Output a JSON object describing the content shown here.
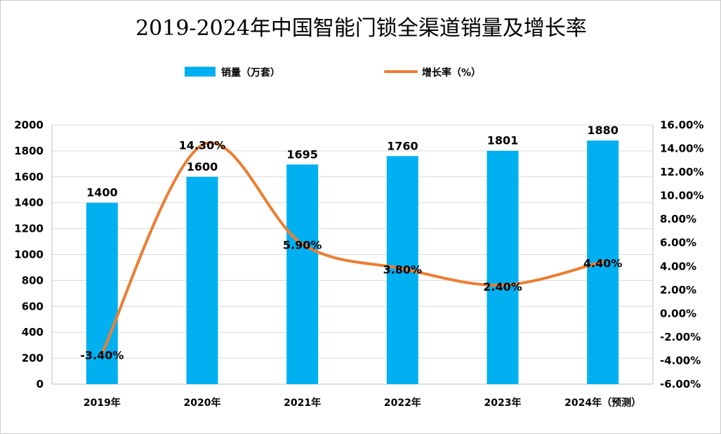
{
  "chart_data": {
    "type": "bar",
    "title": "2019-2024年中国智能门锁全渠道销量及增长率",
    "categories": [
      "2019年",
      "2020年",
      "2021年",
      "2022年",
      "2023年",
      "2024年（预测）"
    ],
    "series": [
      {
        "name": "销量（万套）",
        "type": "bar",
        "axis": "left",
        "values": [
          1400,
          1600,
          1695,
          1760,
          1801,
          1880
        ],
        "labels": [
          "1400",
          "1600",
          "1695",
          "1760",
          "1801",
          "1880"
        ],
        "color": "#00B0F0"
      },
      {
        "name": "增长率（%）",
        "type": "line",
        "axis": "right",
        "smooth": true,
        "values": [
          -3.4,
          14.3,
          5.9,
          3.8,
          2.4,
          4.4
        ],
        "labels": [
          "-3.40%",
          "14.30%",
          "5.90%",
          "3.80%",
          "2.40%",
          "4.40%"
        ],
        "color": "#ED7D31"
      }
    ],
    "y_left": {
      "lim": [
        0,
        2000
      ],
      "ticks": [
        0,
        200,
        400,
        600,
        800,
        1000,
        1200,
        1400,
        1600,
        1800,
        2000
      ],
      "tick_labels": [
        "0",
        "200",
        "400",
        "600",
        "800",
        "1000",
        "1200",
        "1400",
        "1600",
        "1800",
        "2000"
      ]
    },
    "y_right": {
      "lim": [
        -6,
        16
      ],
      "ticks": [
        -6,
        -4,
        -2,
        0,
        2,
        4,
        6,
        8,
        10,
        12,
        14,
        16
      ],
      "tick_labels": [
        "-6.00%",
        "-4.00%",
        "-2.00%",
        "0.00%",
        "2.00%",
        "4.00%",
        "6.00%",
        "8.00%",
        "10.00%",
        "12.00%",
        "14.00%",
        "16.00%"
      ]
    },
    "grid": true,
    "legend": "top-center"
  }
}
